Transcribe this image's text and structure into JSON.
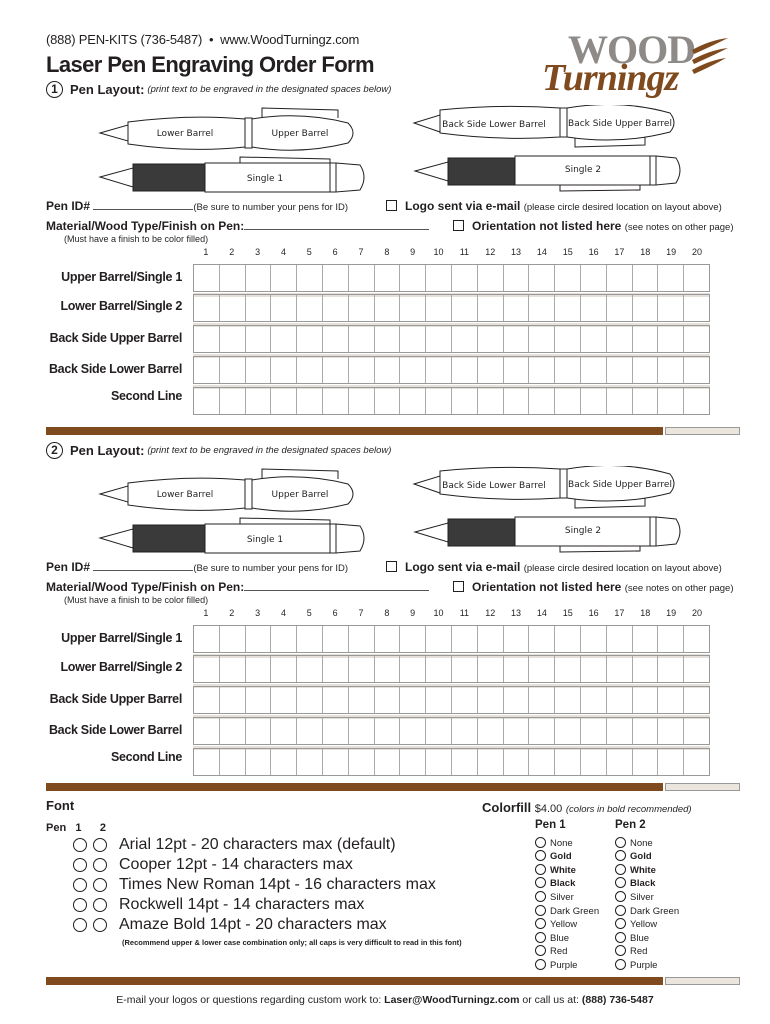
{
  "header": {
    "phone": "(888) PEN-KITS (736-5487)",
    "bullet": "•",
    "website": "www.WoodTurningz.com",
    "title": "Laser Pen Engraving Order Form"
  },
  "logo": {
    "word1": "WOOD",
    "word2": "Turningz"
  },
  "sections": [
    {
      "number": "1",
      "heading": "Pen Layout:",
      "hint": "(print text to be engraved in the designated spaces below)"
    },
    {
      "number": "2",
      "heading": "Pen Layout:",
      "hint": "(print text to be engraved in the designated spaces below)"
    }
  ],
  "pen_labels": {
    "lower": "Lower Barrel",
    "upper": "Upper Barrel",
    "back_lower": "Back Side Lower Barrel",
    "back_upper": "Back Side Upper Barrel",
    "single1": "Single 1",
    "single2": "Single 2"
  },
  "form": {
    "pen_id": "Pen ID#",
    "pen_id_note": "(Be sure to number your pens for ID)",
    "logo_email": "Logo sent via e-mail",
    "logo_email_note": "(please circle desired location on layout above)",
    "material": "Material/Wood Type/Finish on Pen:",
    "material_note": "(Must have a finish to be color filled)",
    "orientation": "Orientation not listed here",
    "orientation_note": "(see notes on other page)"
  },
  "columns": [
    "1",
    "2",
    "3",
    "4",
    "5",
    "6",
    "7",
    "8",
    "9",
    "10",
    "11",
    "12",
    "13",
    "14",
    "15",
    "16",
    "17",
    "18",
    "19",
    "20"
  ],
  "rows": [
    "Upper Barrel/Single 1",
    "Lower Barrel/Single 2",
    "Back Side Upper Barrel",
    "Back Side Lower Barrel",
    "Second Line"
  ],
  "font": {
    "heading": "Font",
    "pen_label": "Pen",
    "pen1": "1",
    "pen2": "2",
    "options": [
      "Arial 12pt - 20 characters max (default)",
      "Cooper 12pt - 14 characters max",
      "Times New Roman 14pt - 16 characters max",
      "Rockwell 14pt - 14 characters max",
      "Amaze Bold 14pt - 20 characters max"
    ],
    "note": "(Recommend upper & lower case combination only; all caps is very difficult to read in this font)"
  },
  "colorfill": {
    "heading": "Colorfill",
    "price": "$4.00",
    "note": "(colors in bold recommended)",
    "pen1": "Pen 1",
    "pen2": "Pen 2",
    "options": [
      "None",
      "Gold",
      "White",
      "Black",
      "Silver",
      "Dark Green",
      "Yellow",
      "Blue",
      "Red",
      "Purple"
    ],
    "bold_options": [
      "Gold",
      "White",
      "Black"
    ]
  },
  "footer": {
    "text": "E-mail your logos or questions regarding custom work to:",
    "email": "Laser@WoodTurningz.com",
    "mid": "or call us at:",
    "phone": "(888) 736-5487"
  },
  "colors": {
    "brown": "#7f4a1e",
    "gray_bar": "#ebe5de"
  }
}
